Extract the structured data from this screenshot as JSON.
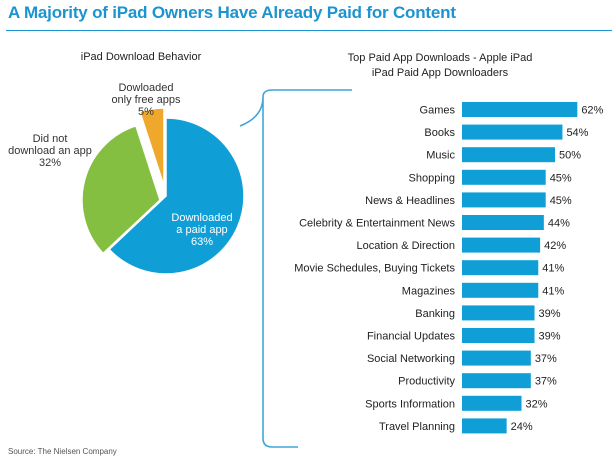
{
  "title": "A Majority of iPad Owners Have Already Paid for Content",
  "source": "Source: The Nielsen Company",
  "colors": {
    "title": "#1b94cf",
    "paid": "#0f9fd6",
    "not_downloaded": "#84bf41",
    "free_only": "#f0a82c",
    "bar": "#0f9fd6",
    "bracket": "#3fa6d9"
  },
  "chart_data": [
    {
      "type": "pie",
      "title": "iPad Download Behavior",
      "slices": [
        {
          "label_lines": [
            "Downloaded",
            "a paid app",
            "63%"
          ],
          "value": 63,
          "color": "#0f9fd6"
        },
        {
          "label_lines": [
            "Did not",
            "download an app",
            "32%"
          ],
          "value": 32,
          "color": "#84bf41"
        },
        {
          "label_lines": [
            "Dowloaded",
            "only free apps",
            "5%"
          ],
          "value": 5,
          "color": "#f0a82c"
        }
      ]
    },
    {
      "type": "bar",
      "orientation": "horizontal",
      "title": "Top Paid App Downloads - Apple iPad",
      "subtitle": "iPad Paid App Downloaders",
      "categories": [
        "Games",
        "Books",
        "Music",
        "Shopping",
        "News & Headlines",
        "Celebrity & Entertainment News",
        "Location & Direction",
        "Movie Schedules, Buying Tickets",
        "Magazines",
        "Banking",
        "Financial Updates",
        "Social Networking",
        "Productivity",
        "Sports Information",
        "Travel Planning"
      ],
      "values": [
        62,
        54,
        50,
        45,
        45,
        44,
        42,
        41,
        41,
        39,
        39,
        37,
        37,
        32,
        24
      ],
      "value_labels": [
        "62%",
        "54%",
        "50%",
        "45%",
        "45%",
        "44%",
        "42%",
        "41%",
        "41%",
        "39%",
        "39%",
        "37%",
        "37%",
        "32%",
        "24%"
      ]
    }
  ]
}
